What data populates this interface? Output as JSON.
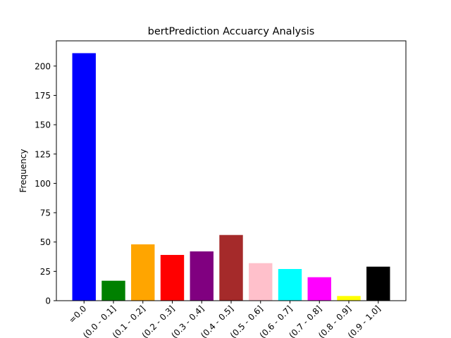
{
  "chart_data": {
    "type": "bar",
    "title": "bertPrediction Accuarcy Analysis",
    "xlabel": "",
    "ylabel": "Frequency",
    "categories": [
      "=0.0",
      "(0.0 - 0.1]",
      "(0.1 - 0.2]",
      "(0.2 - 0.3]",
      "(0.3 - 0.4]",
      "(0.4 - 0.5]",
      "(0.5 - 0.6]",
      "(0.6 - 0.7]",
      "(0.7 - 0.8]",
      "(0.8 - 0.9]",
      "(0.9 - 1.0]"
    ],
    "values": [
      211,
      17,
      48,
      39,
      42,
      56,
      32,
      27,
      20,
      4,
      29
    ],
    "colors": [
      "#0000ff",
      "#008000",
      "#ffa500",
      "#ff0000",
      "#800080",
      "#a52a2a",
      "#ffc0cb",
      "#00ffff",
      "#ff00ff",
      "#ffff00",
      "#000000"
    ],
    "ylim": [
      0,
      221.5
    ],
    "yticks": [
      0,
      25,
      50,
      75,
      100,
      125,
      150,
      175,
      200
    ],
    "grid": false,
    "legend": "none"
  }
}
